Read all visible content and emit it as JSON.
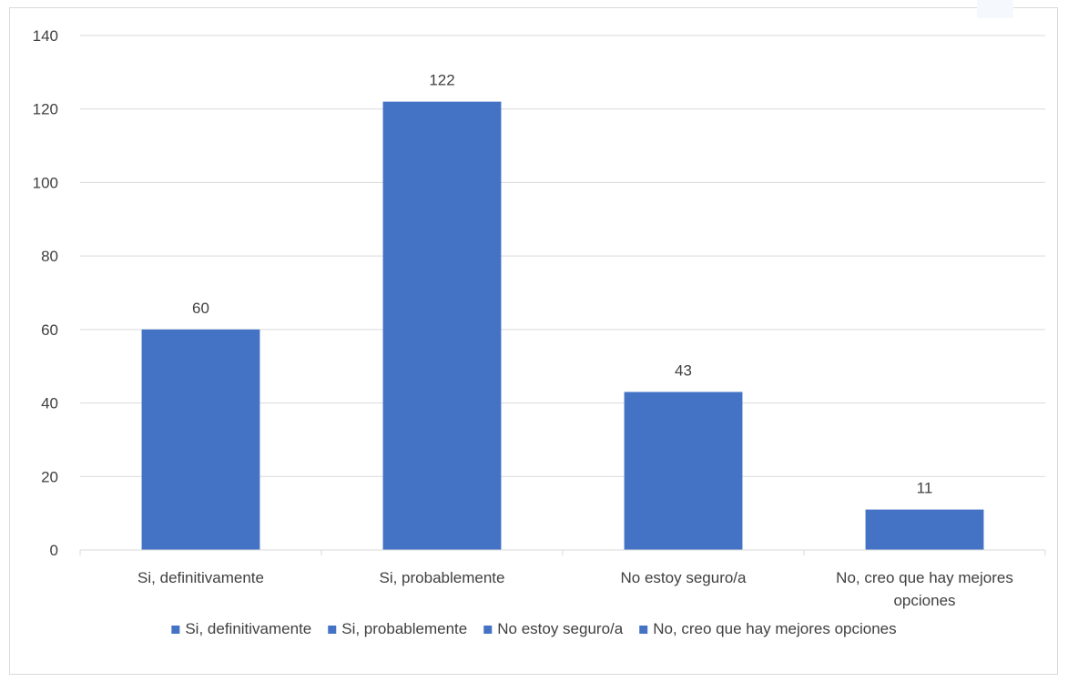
{
  "chart_data": {
    "type": "bar",
    "categories": [
      "Si, definitivamente",
      "Si, probablemente",
      "No estoy seguro/a",
      "No, creo que hay mejores opciones"
    ],
    "category_labels": [
      [
        "Si, definitivamente"
      ],
      [
        "Si, probablemente"
      ],
      [
        "No estoy seguro/a"
      ],
      [
        "No, creo que hay mejores",
        "opciones"
      ]
    ],
    "values": [
      60,
      122,
      43,
      11
    ],
    "data_labels": [
      "60",
      "122",
      "43",
      "11"
    ],
    "ylim": [
      0,
      140
    ],
    "yticks": [
      0,
      20,
      40,
      60,
      80,
      100,
      120,
      140
    ],
    "grid": true,
    "legend": {
      "position": "bottom",
      "entries": [
        "Si, definitivamente",
        "Si, probablemente",
        "No estoy seguro/a",
        "No, creo que hay mejores opciones"
      ]
    },
    "bar_color": "#4472c4",
    "grid_color": "#d9d9d9"
  }
}
